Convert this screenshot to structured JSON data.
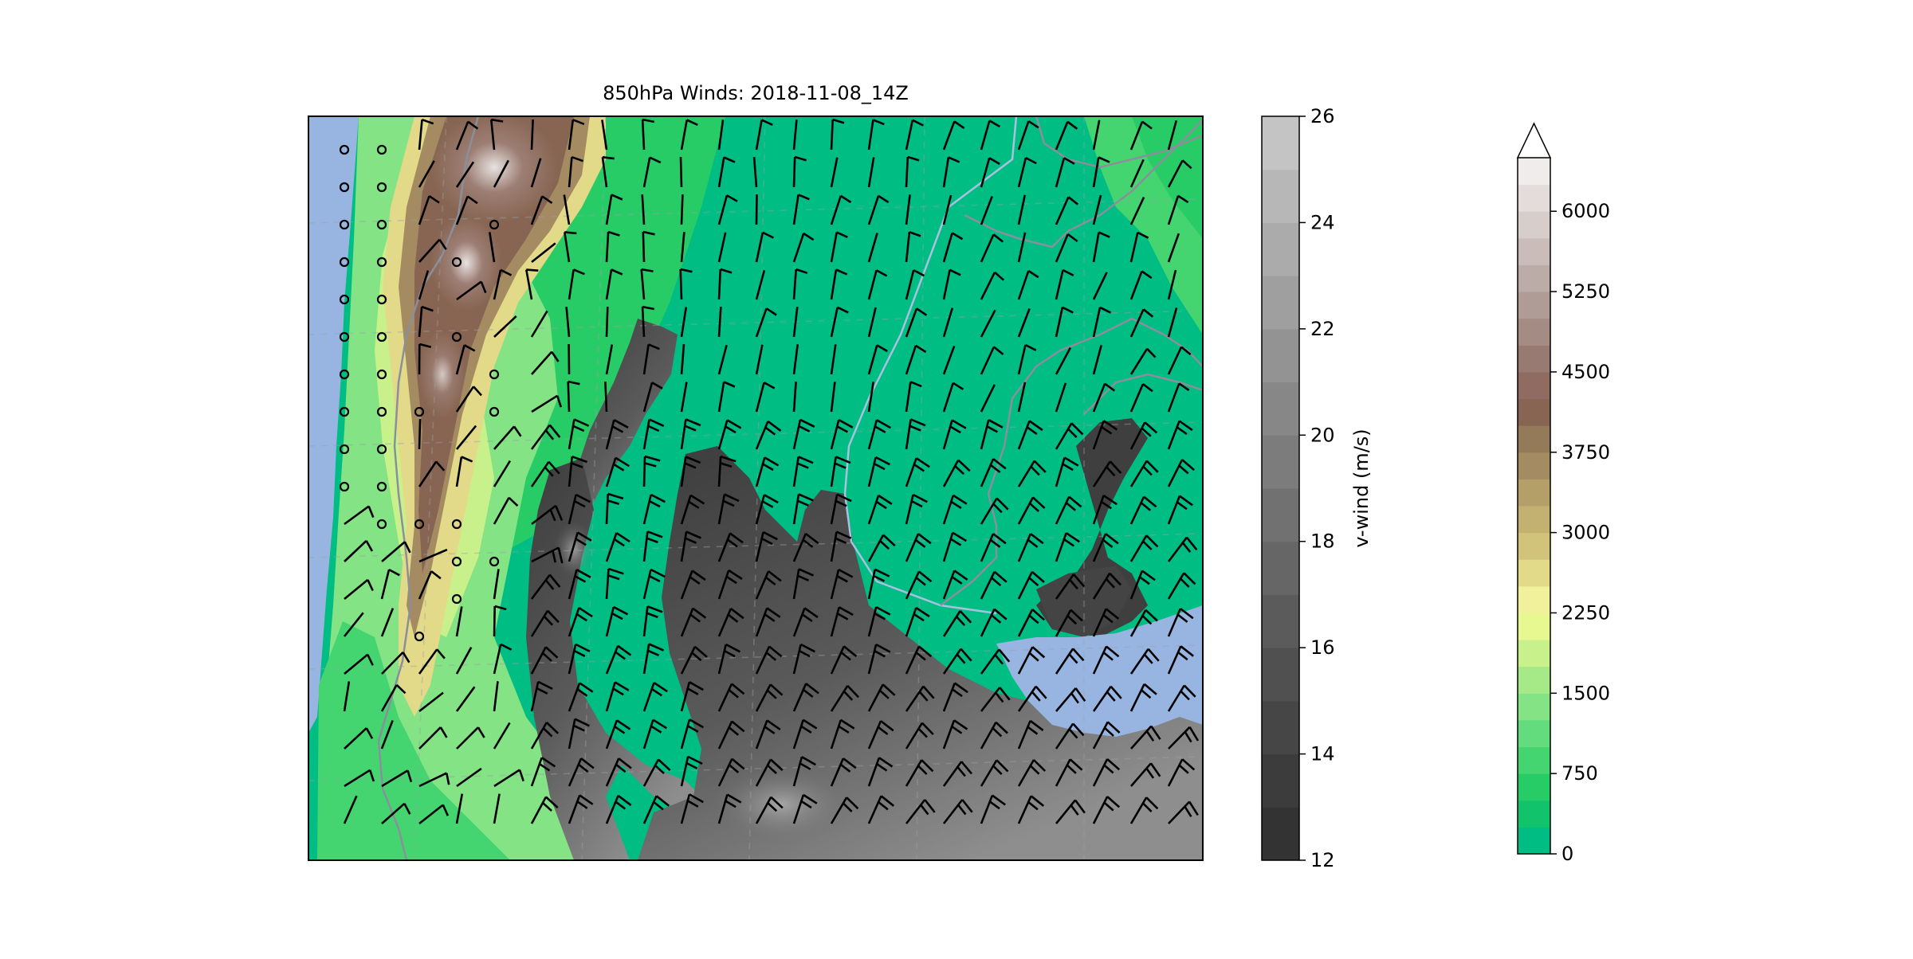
{
  "chart_data": {
    "type": "heatmap",
    "title": "850hPa Winds: 2018-11-08_14Z",
    "overlay": "wind barbs (knots-style flags) over terrain and v-wind shading",
    "vwind_colorbar": {
      "label": "v-wind (m/s)",
      "range": [
        12,
        26
      ],
      "ticks": [
        "12",
        "14",
        "16",
        "18",
        "20",
        "22",
        "24",
        "26"
      ],
      "n_levels": 14,
      "colors": [
        "#333333",
        "#3c3c3c",
        "#464646",
        "#505050",
        "#5b5b5b",
        "#666666",
        "#717171",
        "#7c7c7c",
        "#878787",
        "#939393",
        "#9f9f9f",
        "#ababab",
        "#b7b7b7",
        "#c4c4c4"
      ]
    },
    "terrain_colorbar": {
      "label": "",
      "range": [
        0,
        6000
      ],
      "extend": "max",
      "ticks": [
        "0",
        "750",
        "1500",
        "2250",
        "3000",
        "3750",
        "4500",
        "5250",
        "6000"
      ],
      "tick_values": [
        0,
        750,
        1500,
        2250,
        3000,
        3750,
        4500,
        5250,
        6000
      ],
      "level_step": 250,
      "colors": [
        "#00bd84",
        "#11c46b",
        "#28cc66",
        "#45d570",
        "#62dc7c",
        "#84e384",
        "#a6ea88",
        "#c8f18c",
        "#e8f891",
        "#f2f19b",
        "#e2da88",
        "#d1c47a",
        "#c2b170",
        "#b49f69",
        "#a48b62",
        "#957a59",
        "#876552",
        "#8f6b61",
        "#997a72",
        "#a48b84",
        "#b09c96",
        "#bcaca7",
        "#c9bcb9",
        "#d7cdcb",
        "#e4dcdb",
        "#f1ecec"
      ],
      "extend_color": "#ffffff"
    },
    "map": {
      "ocean_color": "#97b5e0",
      "border_color": "#8a8f9b",
      "river_color": "#a9c0df"
    }
  }
}
